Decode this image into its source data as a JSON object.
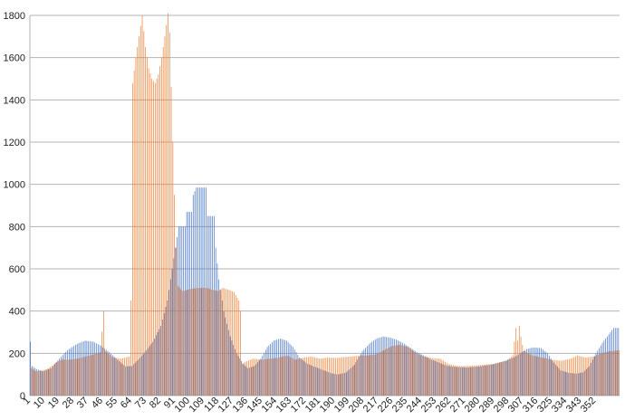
{
  "chart_data": {
    "type": "bar",
    "x_start": 1,
    "x_end": 366,
    "xtick_labels": [
      "1",
      "10",
      "19",
      "28",
      "37",
      "46",
      "55",
      "64",
      "73",
      "82",
      "91",
      "100",
      "109",
      "118",
      "127",
      "136",
      "145",
      "154",
      "163",
      "172",
      "181",
      "190",
      "199",
      "208",
      "217",
      "226",
      "235",
      "244",
      "253",
      "262",
      "271",
      "280",
      "289",
      "298",
      "307",
      "316",
      "325",
      "334",
      "343",
      "352"
    ],
    "ylim": [
      0,
      1800
    ],
    "ytick_labels": [
      "0",
      "200",
      "400",
      "600",
      "800",
      "1000",
      "1200",
      "1400",
      "1600",
      "1800"
    ],
    "grid": true,
    "legend": "none",
    "series": [
      {
        "color": "#4472c4",
        "anchors": [
          [
            1,
            255
          ],
          [
            2,
            140
          ],
          [
            5,
            125
          ],
          [
            9,
            115
          ],
          [
            14,
            130
          ],
          [
            19,
            175
          ],
          [
            24,
            215
          ],
          [
            30,
            245
          ],
          [
            35,
            260
          ],
          [
            40,
            255
          ],
          [
            45,
            235
          ],
          [
            50,
            205
          ],
          [
            55,
            170
          ],
          [
            60,
            138
          ],
          [
            64,
            140
          ],
          [
            68,
            170
          ],
          [
            72,
            205
          ],
          [
            77,
            255
          ],
          [
            82,
            330
          ],
          [
            86,
            450
          ],
          [
            89,
            600
          ],
          [
            91,
            700
          ],
          [
            93,
            800
          ],
          [
            97,
            800
          ],
          [
            98,
            870
          ],
          [
            101,
            870
          ],
          [
            102,
            950
          ],
          [
            104,
            985
          ],
          [
            110,
            985
          ],
          [
            111,
            850
          ],
          [
            115,
            850
          ],
          [
            116,
            700
          ],
          [
            118,
            550
          ],
          [
            121,
            400
          ],
          [
            125,
            280
          ],
          [
            129,
            200
          ],
          [
            133,
            150
          ],
          [
            136,
            130
          ],
          [
            140,
            140
          ],
          [
            144,
            175
          ],
          [
            148,
            230
          ],
          [
            152,
            260
          ],
          [
            156,
            270
          ],
          [
            160,
            260
          ],
          [
            164,
            230
          ],
          [
            168,
            180
          ],
          [
            173,
            150
          ],
          [
            178,
            135
          ],
          [
            183,
            120
          ],
          [
            188,
            105
          ],
          [
            192,
            100
          ],
          [
            197,
            110
          ],
          [
            202,
            145
          ],
          [
            207,
            210
          ],
          [
            212,
            250
          ],
          [
            216,
            270
          ],
          [
            220,
            280
          ],
          [
            224,
            275
          ],
          [
            228,
            265
          ],
          [
            232,
            250
          ],
          [
            236,
            230
          ],
          [
            240,
            210
          ],
          [
            245,
            190
          ],
          [
            250,
            170
          ],
          [
            255,
            155
          ],
          [
            260,
            140
          ],
          [
            266,
            135
          ],
          [
            272,
            133
          ],
          [
            280,
            138
          ],
          [
            288,
            148
          ],
          [
            296,
            165
          ],
          [
            301,
            180
          ],
          [
            305,
            200
          ],
          [
            309,
            220
          ],
          [
            313,
            228
          ],
          [
            318,
            225
          ],
          [
            322,
            200
          ],
          [
            325,
            165
          ],
          [
            330,
            120
          ],
          [
            335,
            108
          ],
          [
            340,
            104
          ],
          [
            344,
            110
          ],
          [
            348,
            140
          ],
          [
            352,
            200
          ],
          [
            356,
            250
          ],
          [
            360,
            290
          ],
          [
            363,
            320
          ],
          [
            366,
            320
          ]
        ]
      },
      {
        "color": "#ed7d31",
        "anchors": [
          [
            1,
            130
          ],
          [
            4,
            115
          ],
          [
            8,
            118
          ],
          [
            12,
            130
          ],
          [
            16,
            155
          ],
          [
            20,
            170
          ],
          [
            25,
            170
          ],
          [
            30,
            175
          ],
          [
            35,
            185
          ],
          [
            40,
            195
          ],
          [
            44,
            205
          ],
          [
            46,
            400
          ],
          [
            47,
            210
          ],
          [
            52,
            180
          ],
          [
            57,
            175
          ],
          [
            62,
            185
          ],
          [
            63,
            450
          ],
          [
            64,
            1480
          ],
          [
            66,
            1600
          ],
          [
            68,
            1700
          ],
          [
            70,
            1800
          ],
          [
            72,
            1650
          ],
          [
            74,
            1550
          ],
          [
            76,
            1500
          ],
          [
            78,
            1480
          ],
          [
            80,
            1520
          ],
          [
            82,
            1600
          ],
          [
            84,
            1700
          ],
          [
            86,
            1810
          ],
          [
            87,
            1720
          ],
          [
            89,
            1200
          ],
          [
            90,
            950
          ],
          [
            91,
            700
          ],
          [
            92,
            520
          ],
          [
            95,
            495
          ],
          [
            100,
            505
          ],
          [
            105,
            510
          ],
          [
            110,
            510
          ],
          [
            114,
            500
          ],
          [
            117,
            495
          ],
          [
            120,
            510
          ],
          [
            124,
            500
          ],
          [
            127,
            490
          ],
          [
            130,
            450
          ],
          [
            131,
            400
          ],
          [
            132,
            150
          ],
          [
            134,
            160
          ],
          [
            139,
            175
          ],
          [
            144,
            170
          ],
          [
            150,
            175
          ],
          [
            155,
            180
          ],
          [
            160,
            190
          ],
          [
            165,
            170
          ],
          [
            170,
            180
          ],
          [
            175,
            185
          ],
          [
            180,
            175
          ],
          [
            185,
            180
          ],
          [
            190,
            178
          ],
          [
            195,
            182
          ],
          [
            200,
            185
          ],
          [
            205,
            190
          ],
          [
            210,
            190
          ],
          [
            215,
            195
          ],
          [
            220,
            215
          ],
          [
            225,
            235
          ],
          [
            230,
            240
          ],
          [
            235,
            230
          ],
          [
            240,
            200
          ],
          [
            245,
            185
          ],
          [
            250,
            178
          ],
          [
            255,
            175
          ],
          [
            260,
            150
          ],
          [
            266,
            140
          ],
          [
            272,
            140
          ],
          [
            280,
            145
          ],
          [
            288,
            150
          ],
          [
            296,
            165
          ],
          [
            300,
            190
          ],
          [
            302,
            320
          ],
          [
            303,
            260
          ],
          [
            304,
            330
          ],
          [
            305,
            280
          ],
          [
            306,
            240
          ],
          [
            307,
            210
          ],
          [
            312,
            190
          ],
          [
            318,
            180
          ],
          [
            324,
            170
          ],
          [
            330,
            165
          ],
          [
            336,
            175
          ],
          [
            340,
            190
          ],
          [
            345,
            180
          ],
          [
            350,
            185
          ],
          [
            355,
            200
          ],
          [
            360,
            210
          ],
          [
            366,
            215
          ]
        ]
      }
    ]
  }
}
